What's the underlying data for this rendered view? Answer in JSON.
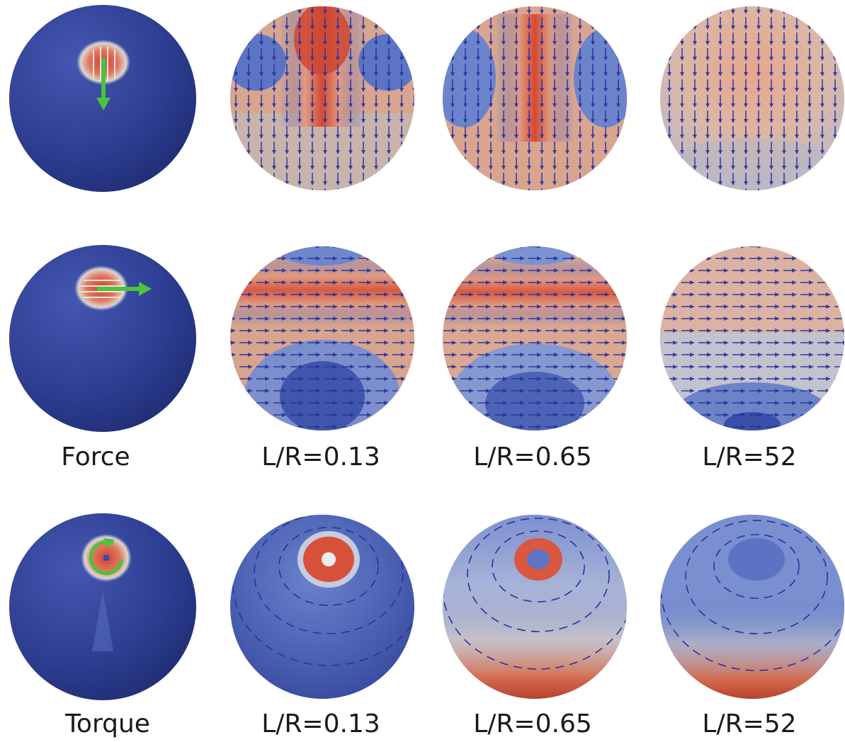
{
  "labels": {
    "force": "Force",
    "torque": "Torque",
    "force_ratios": [
      "L/R=0.13",
      "L/R=0.65",
      "L/R=52"
    ],
    "torque_ratios": [
      "L/R=0.13",
      "L/R=0.65",
      "L/R=52"
    ]
  },
  "colors": {
    "sphere_blue": "#2e3f93",
    "field_red": "#d9543f",
    "field_light": "#d9cfc6",
    "arrow_blue": "#27339a",
    "applied_green": "#4cc23d"
  },
  "rows": [
    {
      "id": "force-down",
      "applied": "force-down-arrow",
      "panels": [
        "source",
        "low-ratio",
        "mid-ratio",
        "high-ratio"
      ]
    },
    {
      "id": "force-right",
      "applied": "force-right-arrow",
      "panels": [
        "source",
        "low-ratio",
        "mid-ratio",
        "high-ratio"
      ]
    },
    {
      "id": "torque",
      "applied": "torque-circular-arrow",
      "panels": [
        "source",
        "low-ratio",
        "mid-ratio",
        "high-ratio"
      ]
    }
  ]
}
